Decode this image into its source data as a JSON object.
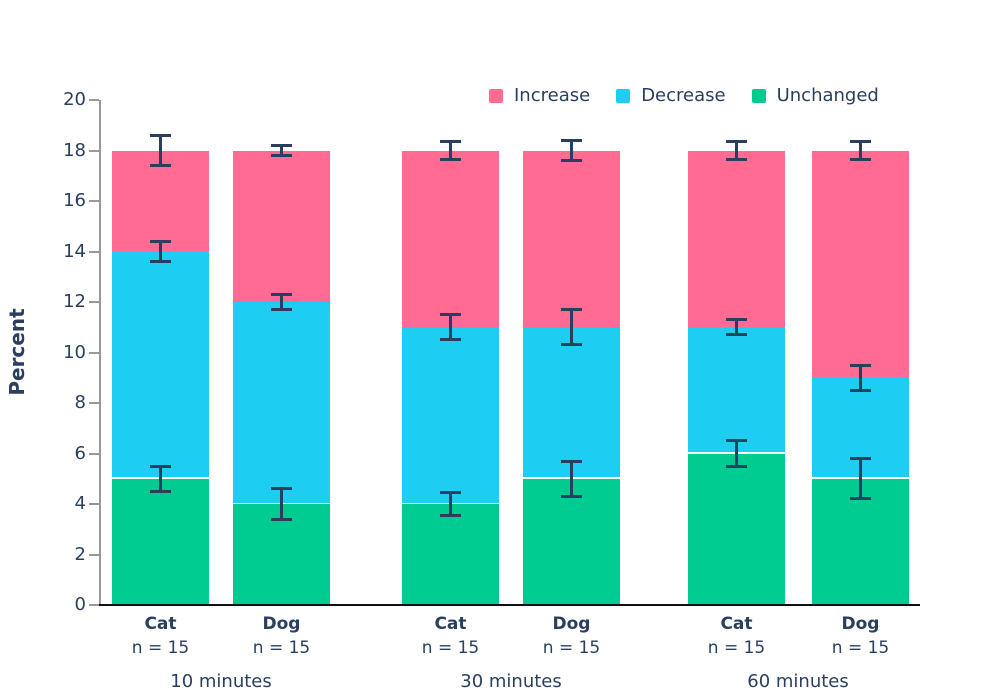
{
  "chart_data": {
    "type": "bar",
    "stacked": true,
    "title": "",
    "xlabel": "",
    "ylabel": "Percent",
    "ylim": [
      0,
      20
    ],
    "yticks": [
      0,
      2,
      4,
      6,
      8,
      10,
      12,
      14,
      16,
      18,
      20
    ],
    "grid": false,
    "legend": {
      "position": "top",
      "entries": [
        {
          "label": "Increase",
          "color": "#ff6b92"
        },
        {
          "label": "Decrease",
          "color": "#1ecdf2"
        },
        {
          "label": "Unchanged",
          "color": "#00cb90"
        }
      ]
    },
    "series_order_bottom_to_top": [
      "Unchanged",
      "Decrease",
      "Increase"
    ],
    "groups": [
      {
        "label": "10 minutes",
        "bars": [
          {
            "label": "Cat",
            "sublabel": "n = 15",
            "values": {
              "Unchanged": 5,
              "Decrease": 9,
              "Increase": 4
            },
            "total": 18,
            "error_bars": [
              {
                "at": 5,
                "plus_minus": 0.5
              },
              {
                "at": 14,
                "plus_minus": 0.4
              },
              {
                "at": 18,
                "plus_minus": 0.6
              }
            ]
          },
          {
            "label": "Dog",
            "sublabel": "n = 15",
            "values": {
              "Unchanged": 4,
              "Decrease": 8,
              "Increase": 6
            },
            "total": 18,
            "error_bars": [
              {
                "at": 4,
                "plus_minus": 0.6
              },
              {
                "at": 12,
                "plus_minus": 0.3
              },
              {
                "at": 18,
                "plus_minus": 0.2
              }
            ]
          }
        ]
      },
      {
        "label": "30 minutes",
        "bars": [
          {
            "label": "Cat",
            "sublabel": "n = 15",
            "values": {
              "Unchanged": 4,
              "Decrease": 7,
              "Increase": 7
            },
            "total": 18,
            "error_bars": [
              {
                "at": 4,
                "plus_minus": 0.45
              },
              {
                "at": 11,
                "plus_minus": 0.5
              },
              {
                "at": 18,
                "plus_minus": 0.35
              }
            ]
          },
          {
            "label": "Dog",
            "sublabel": "n = 15",
            "values": {
              "Unchanged": 5,
              "Decrease": 6,
              "Increase": 7
            },
            "total": 18,
            "error_bars": [
              {
                "at": 5,
                "plus_minus": 0.7
              },
              {
                "at": 11,
                "plus_minus": 0.7
              },
              {
                "at": 18,
                "plus_minus": 0.4
              }
            ]
          }
        ]
      },
      {
        "label": "60 minutes",
        "bars": [
          {
            "label": "Cat",
            "sublabel": "n = 15",
            "values": {
              "Unchanged": 6,
              "Decrease": 5,
              "Increase": 7
            },
            "total": 18,
            "error_bars": [
              {
                "at": 6,
                "plus_minus": 0.5
              },
              {
                "at": 11,
                "plus_minus": 0.3
              },
              {
                "at": 18,
                "plus_minus": 0.35
              }
            ]
          },
          {
            "label": "Dog",
            "sublabel": "n = 15",
            "values": {
              "Unchanged": 5,
              "Decrease": 4,
              "Increase": 9
            },
            "total": 18,
            "error_bars": [
              {
                "at": 5,
                "plus_minus": 0.8
              },
              {
                "at": 9,
                "plus_minus": 0.5
              },
              {
                "at": 18,
                "plus_minus": 0.35
              }
            ]
          }
        ]
      }
    ],
    "colors": {
      "text": "#2a3f5f",
      "y_axis_line": "#999999",
      "x_axis_line": "#111111",
      "error_bar": "#2a3f5f",
      "segment_separator": "#ffffff",
      "background": "#ffffff"
    }
  }
}
